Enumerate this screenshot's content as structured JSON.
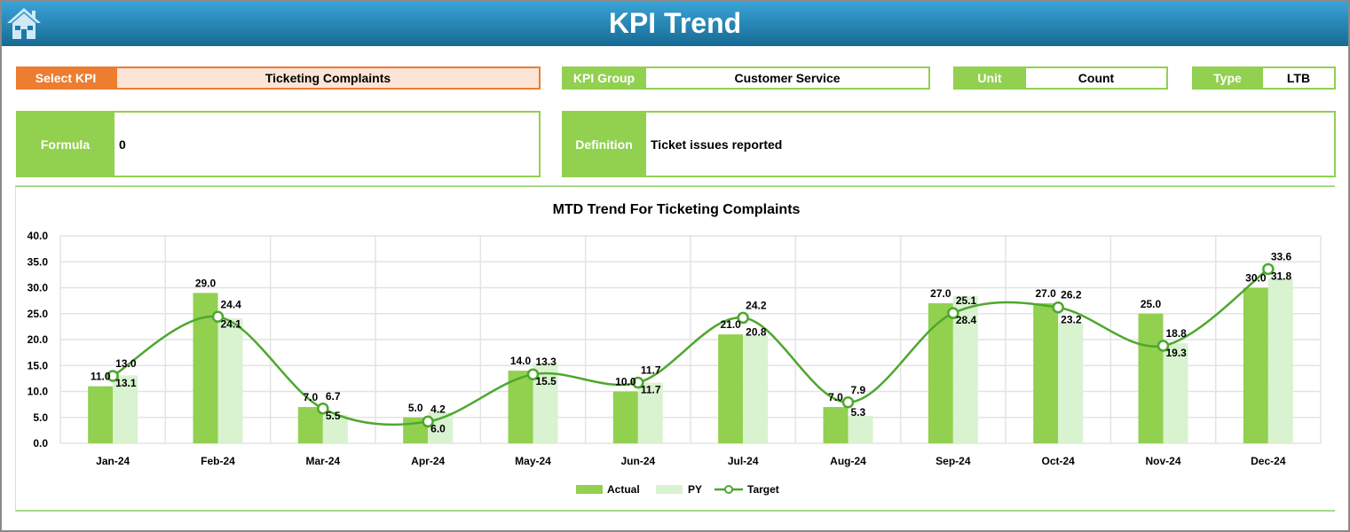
{
  "header": {
    "title": "KPI Trend",
    "home_icon": "home-icon"
  },
  "fields": {
    "select_kpi_label": "Select KPI",
    "select_kpi_value": "Ticketing Complaints",
    "kpi_group_label": "KPI Group",
    "kpi_group_value": "Customer Service",
    "unit_label": "Unit",
    "unit_value": "Count",
    "type_label": "Type",
    "type_value": "LTB",
    "formula_label": "Formula",
    "formula_value": "0",
    "definition_label": "Definition",
    "definition_value": "Ticket issues reported"
  },
  "colors": {
    "actual": "#92D050",
    "py": "#D9F2D0",
    "target": "#4EA72E",
    "accent": "#ED7D31"
  },
  "chart_data": {
    "type": "bar",
    "title": "MTD Trend For Ticketing Complaints",
    "categories": [
      "Jan-24",
      "Feb-24",
      "Mar-24",
      "Apr-24",
      "May-24",
      "Jun-24",
      "Jul-24",
      "Aug-24",
      "Sep-24",
      "Oct-24",
      "Nov-24",
      "Dec-24"
    ],
    "series": [
      {
        "name": "Actual",
        "type": "bar",
        "values": [
          11.0,
          29.0,
          7.0,
          5.0,
          14.0,
          10.0,
          21.0,
          7.0,
          27.0,
          27.0,
          25.0,
          30.0
        ]
      },
      {
        "name": "PY",
        "type": "bar",
        "values": [
          13.1,
          24.1,
          5.5,
          6.0,
          15.5,
          11.7,
          20.8,
          5.3,
          28.4,
          23.2,
          19.3,
          31.8
        ]
      },
      {
        "name": "Target",
        "type": "line",
        "values": [
          13.0,
          24.4,
          6.7,
          4.2,
          13.3,
          11.7,
          24.2,
          7.9,
          25.1,
          26.2,
          18.8,
          33.6
        ]
      }
    ],
    "yticks": [
      "0.0",
      "5.0",
      "10.0",
      "15.0",
      "20.0",
      "25.0",
      "30.0",
      "35.0",
      "40.0"
    ],
    "ylim": [
      0,
      40
    ],
    "grid": true,
    "legend": "bottom"
  }
}
